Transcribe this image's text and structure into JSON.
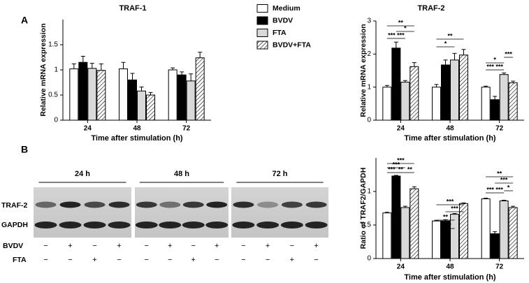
{
  "panel_labels": [
    "A",
    "B"
  ],
  "chart_data": [
    {
      "type": "bar",
      "title": "TRAF-1",
      "ylabel": "Relative mRNA expression",
      "xlabel": "Time after stimulation (h)",
      "categories": [
        "24",
        "48",
        "72"
      ],
      "ylim": [
        0,
        2
      ],
      "yticks": [
        0,
        0.5,
        1,
        1.5
      ],
      "series": [
        {
          "name": "Medium",
          "color": "#ffffff",
          "values": [
            1.02,
            1.02,
            1.0
          ],
          "errors": [
            0.1,
            0.13,
            0.04
          ]
        },
        {
          "name": "BVDV",
          "color": "#000000",
          "values": [
            1.15,
            0.8,
            0.9
          ],
          "errors": [
            0.12,
            0.13,
            0.06
          ]
        },
        {
          "name": "FTA",
          "color": "#d9d9d9",
          "values": [
            1.03,
            0.58,
            0.78
          ],
          "errors": [
            0.1,
            0.08,
            0.14
          ]
        },
        {
          "name": "BVDV+FTA",
          "color": "#ffffff",
          "hatch": true,
          "values": [
            0.99,
            0.5,
            1.24
          ],
          "errors": [
            0.13,
            0.05,
            0.11
          ]
        }
      ]
    },
    {
      "type": "bar",
      "title": "TRAF-2",
      "ylabel": "Relative mRNA expression",
      "xlabel": "Time after stimulation (h)",
      "categories": [
        "24",
        "48",
        "72"
      ],
      "ylim": [
        0,
        3
      ],
      "yticks": [
        0,
        1,
        2,
        3
      ],
      "series": [
        {
          "color": "#ffffff",
          "values": [
            1.0,
            1.0,
            1.0
          ],
          "errors": [
            0.05,
            0.08,
            0.03
          ]
        },
        {
          "color": "#000000",
          "values": [
            2.18,
            1.67,
            0.62
          ],
          "errors": [
            0.18,
            0.15,
            0.1
          ]
        },
        {
          "color": "#d9d9d9",
          "values": [
            1.15,
            1.82,
            1.38
          ],
          "errors": [
            0.05,
            0.2,
            0.05
          ]
        },
        {
          "color": "#ffffff",
          "hatch": true,
          "values": [
            1.62,
            1.97,
            1.13
          ],
          "errors": [
            0.12,
            0.17,
            0.05
          ]
        }
      ],
      "annotations": [
        "**",
        "*",
        "***",
        "***",
        "**",
        "*",
        "***",
        "*",
        "***",
        "***"
      ]
    },
    {
      "type": "bar",
      "ylabel": "Ratio of TRAF2/GAPDH",
      "xlabel": "Time after stimulation (h)",
      "categories": [
        "24",
        "48",
        "72"
      ],
      "ylim": [
        0,
        1.5
      ],
      "yticks": [
        0,
        0.5,
        1
      ],
      "series": [
        {
          "color": "#ffffff",
          "values": [
            0.68,
            0.56,
            0.89
          ],
          "errors": [
            0.01,
            0.01,
            0.01
          ]
        },
        {
          "color": "#000000",
          "values": [
            1.23,
            0.56,
            0.37
          ],
          "errors": [
            0.01,
            0.02,
            0.03
          ]
        },
        {
          "color": "#d9d9d9",
          "values": [
            0.76,
            0.66,
            0.86
          ],
          "errors": [
            0.02,
            0.01,
            0.01
          ]
        },
        {
          "color": "#ffffff",
          "hatch": true,
          "values": [
            1.04,
            0.82,
            0.76
          ],
          "errors": [
            0.03,
            0.01,
            0.02
          ]
        }
      ],
      "annotations": [
        "***",
        "***",
        "***",
        "**",
        "**",
        "***",
        "***",
        "**",
        "*",
        "**",
        "***",
        "*",
        "***",
        "***"
      ]
    }
  ],
  "blot": {
    "time_labels": [
      "24 h",
      "48 h",
      "72 h"
    ],
    "row_labels": [
      "TRAF-2",
      "GAPDH"
    ],
    "treatments": [
      {
        "name": "BVDV",
        "signs": [
          "−",
          "+",
          "−",
          "+",
          "−",
          "+",
          "−",
          "+",
          "−",
          "+",
          "−",
          "+"
        ]
      },
      {
        "name": "FTA",
        "signs": [
          "−",
          "−",
          "+",
          "−",
          "−",
          "−",
          "+",
          "−",
          "−",
          "−",
          "+",
          "−"
        ]
      }
    ]
  }
}
